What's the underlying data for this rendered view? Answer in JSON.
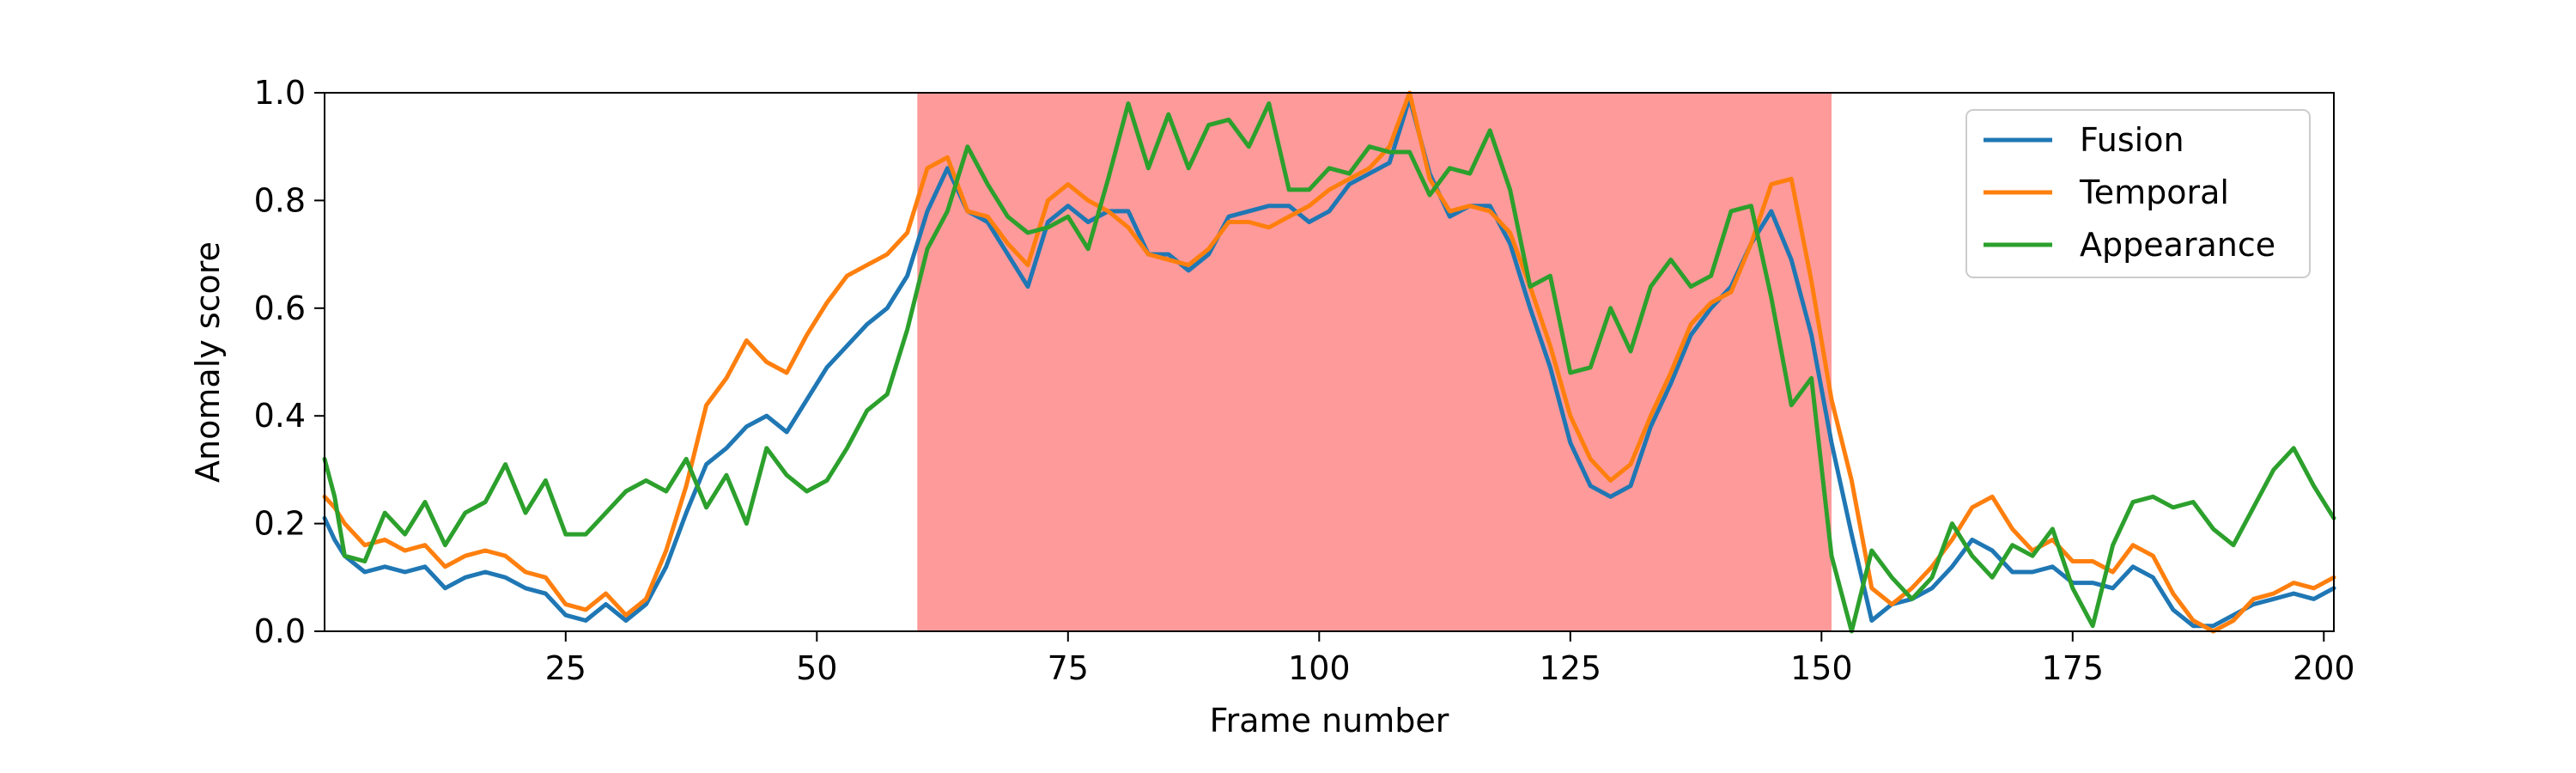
{
  "chart_data": {
    "type": "line",
    "title": "",
    "xlabel": "Frame number",
    "ylabel": "Anomaly score",
    "xlim": [
      1,
      201
    ],
    "ylim": [
      0.0,
      1.0
    ],
    "xticks": [
      25,
      50,
      75,
      100,
      125,
      150,
      175,
      200
    ],
    "yticks": [
      0.0,
      0.2,
      0.4,
      0.6,
      0.8,
      1.0
    ],
    "ytick_labels": [
      "0.0",
      "0.2",
      "0.4",
      "0.6",
      "0.8",
      "1.0"
    ],
    "grid": false,
    "legend_position": "upper right",
    "highlight_region": {
      "x_start": 60,
      "x_end": 151,
      "color": "#ff9a9a"
    },
    "series": [
      {
        "name": "Fusion",
        "color": "#1f77b4",
        "x": [
          1,
          2,
          3,
          5,
          7,
          9,
          11,
          13,
          15,
          17,
          19,
          21,
          23,
          25,
          27,
          29,
          31,
          33,
          35,
          37,
          39,
          41,
          43,
          45,
          47,
          49,
          51,
          53,
          55,
          57,
          59,
          61,
          63,
          65,
          67,
          69,
          71,
          73,
          75,
          77,
          79,
          81,
          83,
          85,
          87,
          89,
          91,
          93,
          95,
          97,
          99,
          101,
          103,
          105,
          107,
          109,
          111,
          113,
          115,
          117,
          119,
          121,
          123,
          125,
          127,
          129,
          131,
          133,
          135,
          137,
          139,
          141,
          143,
          145,
          147,
          149,
          151,
          153,
          155,
          157,
          159,
          161,
          163,
          165,
          167,
          169,
          171,
          173,
          175,
          177,
          179,
          181,
          183,
          185,
          187,
          189,
          191,
          193,
          195,
          197,
          199,
          201
        ],
        "values": [
          0.21,
          0.17,
          0.14,
          0.11,
          0.12,
          0.11,
          0.12,
          0.08,
          0.1,
          0.11,
          0.1,
          0.08,
          0.07,
          0.03,
          0.02,
          0.05,
          0.02,
          0.05,
          0.12,
          0.22,
          0.31,
          0.34,
          0.38,
          0.4,
          0.37,
          0.43,
          0.49,
          0.53,
          0.57,
          0.6,
          0.66,
          0.78,
          0.86,
          0.78,
          0.76,
          0.7,
          0.64,
          0.76,
          0.79,
          0.76,
          0.78,
          0.78,
          0.7,
          0.7,
          0.67,
          0.7,
          0.77,
          0.78,
          0.79,
          0.79,
          0.76,
          0.78,
          0.83,
          0.85,
          0.87,
          0.99,
          0.85,
          0.77,
          0.79,
          0.79,
          0.72,
          0.6,
          0.49,
          0.35,
          0.27,
          0.25,
          0.27,
          0.38,
          0.46,
          0.55,
          0.6,
          0.64,
          0.72,
          0.78,
          0.69,
          0.55,
          0.35,
          0.18,
          0.02,
          0.05,
          0.06,
          0.08,
          0.12,
          0.17,
          0.15,
          0.11,
          0.11,
          0.12,
          0.09,
          0.09,
          0.08,
          0.12,
          0.1,
          0.04,
          0.01,
          0.01,
          0.03,
          0.05,
          0.06,
          0.07,
          0.06,
          0.08
        ]
      },
      {
        "name": "Temporal",
        "color": "#ff7f0e",
        "x": [
          1,
          2,
          3,
          5,
          7,
          9,
          11,
          13,
          15,
          17,
          19,
          21,
          23,
          25,
          27,
          29,
          31,
          33,
          35,
          37,
          39,
          41,
          43,
          45,
          47,
          49,
          51,
          53,
          55,
          57,
          59,
          61,
          63,
          65,
          67,
          69,
          71,
          73,
          75,
          77,
          79,
          81,
          83,
          85,
          87,
          89,
          91,
          93,
          95,
          97,
          99,
          101,
          103,
          105,
          107,
          109,
          111,
          113,
          115,
          117,
          119,
          121,
          123,
          125,
          127,
          129,
          131,
          133,
          135,
          137,
          139,
          141,
          143,
          145,
          147,
          149,
          151,
          153,
          155,
          157,
          159,
          161,
          163,
          165,
          167,
          169,
          171,
          173,
          175,
          177,
          179,
          181,
          183,
          185,
          187,
          189,
          191,
          193,
          195,
          197,
          199,
          201
        ],
        "values": [
          0.25,
          0.23,
          0.2,
          0.16,
          0.17,
          0.15,
          0.16,
          0.12,
          0.14,
          0.15,
          0.14,
          0.11,
          0.1,
          0.05,
          0.04,
          0.07,
          0.03,
          0.06,
          0.15,
          0.27,
          0.42,
          0.47,
          0.54,
          0.5,
          0.48,
          0.55,
          0.61,
          0.66,
          0.68,
          0.7,
          0.74,
          0.86,
          0.88,
          0.78,
          0.77,
          0.72,
          0.68,
          0.8,
          0.83,
          0.8,
          0.78,
          0.75,
          0.7,
          0.69,
          0.68,
          0.71,
          0.76,
          0.76,
          0.75,
          0.77,
          0.79,
          0.82,
          0.84,
          0.86,
          0.9,
          1.0,
          0.84,
          0.78,
          0.79,
          0.78,
          0.74,
          0.64,
          0.53,
          0.4,
          0.32,
          0.28,
          0.31,
          0.4,
          0.48,
          0.57,
          0.61,
          0.63,
          0.72,
          0.83,
          0.84,
          0.65,
          0.43,
          0.28,
          0.08,
          0.05,
          0.08,
          0.12,
          0.17,
          0.23,
          0.25,
          0.19,
          0.15,
          0.17,
          0.13,
          0.13,
          0.11,
          0.16,
          0.14,
          0.07,
          0.02,
          0.0,
          0.02,
          0.06,
          0.07,
          0.09,
          0.08,
          0.1
        ]
      },
      {
        "name": "Appearance",
        "color": "#2ca02c",
        "x": [
          1,
          2,
          3,
          5,
          7,
          9,
          11,
          13,
          15,
          17,
          19,
          21,
          23,
          25,
          27,
          29,
          31,
          33,
          35,
          37,
          39,
          41,
          43,
          45,
          47,
          49,
          51,
          53,
          55,
          57,
          59,
          61,
          63,
          65,
          67,
          69,
          71,
          73,
          75,
          77,
          79,
          81,
          83,
          85,
          87,
          89,
          91,
          93,
          95,
          97,
          99,
          101,
          103,
          105,
          107,
          109,
          111,
          113,
          115,
          117,
          119,
          121,
          123,
          125,
          127,
          129,
          131,
          133,
          135,
          137,
          139,
          141,
          143,
          145,
          147,
          149,
          151,
          153,
          155,
          157,
          159,
          161,
          163,
          165,
          167,
          169,
          171,
          173,
          175,
          177,
          179,
          181,
          183,
          185,
          187,
          189,
          191,
          193,
          195,
          197,
          199,
          201
        ],
        "values": [
          0.32,
          0.25,
          0.14,
          0.13,
          0.22,
          0.18,
          0.24,
          0.16,
          0.22,
          0.24,
          0.31,
          0.22,
          0.28,
          0.18,
          0.18,
          0.22,
          0.26,
          0.28,
          0.26,
          0.32,
          0.23,
          0.29,
          0.2,
          0.34,
          0.29,
          0.26,
          0.28,
          0.34,
          0.41,
          0.44,
          0.56,
          0.71,
          0.78,
          0.9,
          0.83,
          0.77,
          0.74,
          0.75,
          0.77,
          0.71,
          0.84,
          0.98,
          0.86,
          0.96,
          0.86,
          0.94,
          0.95,
          0.9,
          0.98,
          0.82,
          0.82,
          0.86,
          0.85,
          0.9,
          0.89,
          0.89,
          0.81,
          0.86,
          0.85,
          0.93,
          0.82,
          0.64,
          0.66,
          0.48,
          0.49,
          0.6,
          0.52,
          0.64,
          0.69,
          0.64,
          0.66,
          0.78,
          0.79,
          0.62,
          0.42,
          0.47,
          0.14,
          0.0,
          0.15,
          0.1,
          0.06,
          0.1,
          0.2,
          0.14,
          0.1,
          0.16,
          0.14,
          0.19,
          0.08,
          0.01,
          0.16,
          0.24,
          0.25,
          0.23,
          0.24,
          0.19,
          0.16,
          0.23,
          0.3,
          0.34,
          0.27,
          0.21
        ]
      }
    ]
  }
}
